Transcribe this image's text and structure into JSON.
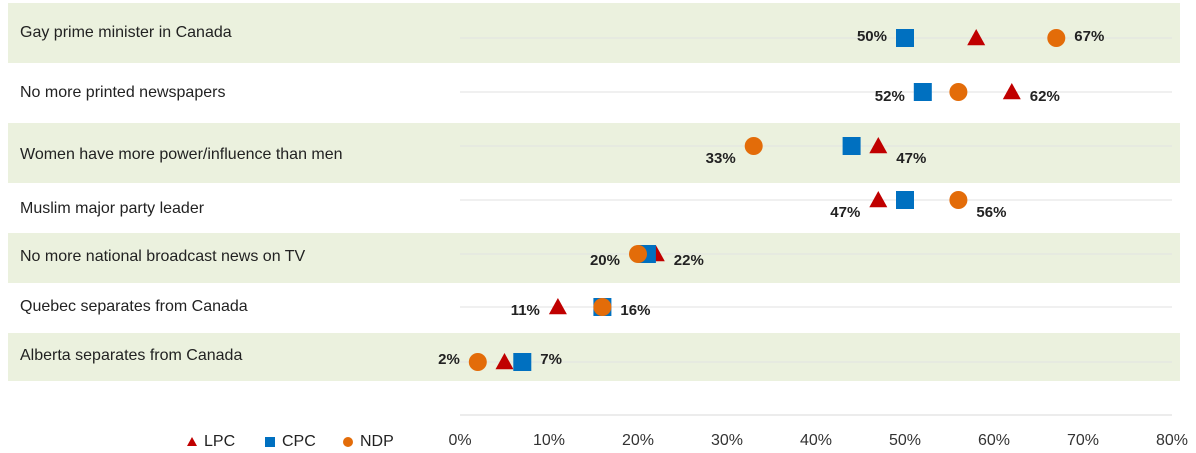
{
  "chart_data": {
    "type": "dot",
    "categories": [
      "Gay prime minister in Canada",
      "No more printed newspapers",
      "Women have more power/influence than men",
      "Muslim major party leader",
      "No more national broadcast news on TV",
      "Quebec separates from Canada",
      "Alberta separates from Canada"
    ],
    "series": [
      {
        "name": "LPC",
        "color": "#c00000",
        "marker": "triangle",
        "values": [
          58,
          62,
          47,
          47,
          22,
          11,
          5
        ],
        "value_labels": [
          null,
          "62%",
          "47%",
          "47%",
          "22%",
          "11%",
          null
        ]
      },
      {
        "name": "CPC",
        "color": "#0070c0",
        "marker": "square",
        "values": [
          50,
          52,
          44,
          50,
          21,
          16,
          7
        ],
        "value_labels": [
          "50%",
          "52%",
          null,
          null,
          null,
          null,
          "7%"
        ]
      },
      {
        "name": "NDP",
        "color": "#e36c09",
        "marker": "circle",
        "values": [
          67,
          56,
          33,
          56,
          20,
          16,
          2
        ],
        "value_labels": [
          "67%",
          null,
          "33%",
          "56%",
          "20%",
          "16%",
          "2%"
        ]
      }
    ],
    "xlim": [
      0,
      80
    ],
    "xticks": [
      {
        "value": 0,
        "label": "0%"
      },
      {
        "value": 10,
        "label": "10%"
      },
      {
        "value": 20,
        "label": "20%"
      },
      {
        "value": 30,
        "label": "30%"
      },
      {
        "value": 40,
        "label": "40%"
      },
      {
        "value": 50,
        "label": "50%"
      },
      {
        "value": 60,
        "label": "60%"
      },
      {
        "value": 70,
        "label": "70%"
      },
      {
        "value": 80,
        "label": "80%"
      }
    ],
    "legend": "bottom-left"
  }
}
